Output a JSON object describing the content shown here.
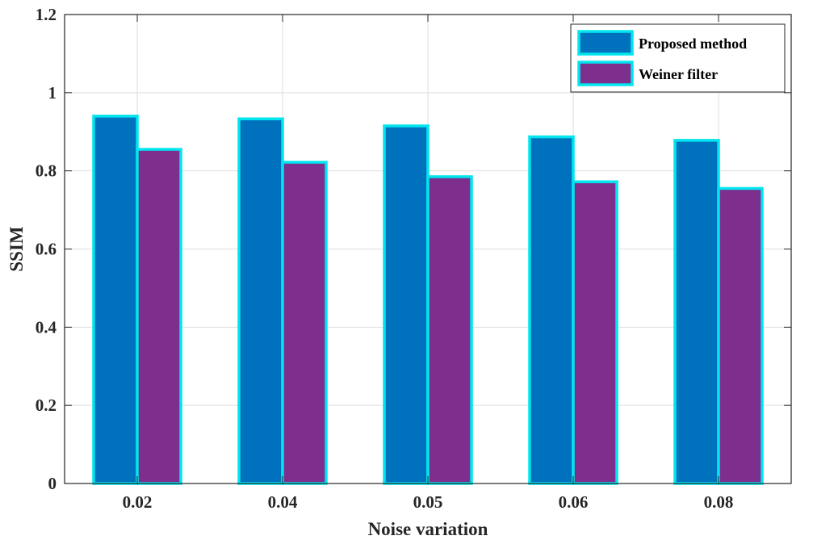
{
  "chart_data": {
    "type": "bar",
    "title": "",
    "xlabel": "Noise variation",
    "ylabel": "SSIM",
    "categories": [
      "0.02",
      "0.04",
      "0.05",
      "0.06",
      "0.08"
    ],
    "series": [
      {
        "name": "Proposed method",
        "values": [
          0.94,
          0.933,
          0.915,
          0.887,
          0.878
        ],
        "color": "#0072BD"
      },
      {
        "name": "Weiner filter",
        "values": [
          0.855,
          0.822,
          0.785,
          0.772,
          0.755
        ],
        "color": "#7E2F8E"
      }
    ],
    "bar_edge_color": "#00E5EE",
    "ylim": [
      0,
      1.2
    ],
    "yticks": [
      "0",
      "0.2",
      "0.4",
      "0.6",
      "0.8",
      "1",
      "1.2"
    ],
    "grid": true,
    "legend_position": "top-right"
  }
}
